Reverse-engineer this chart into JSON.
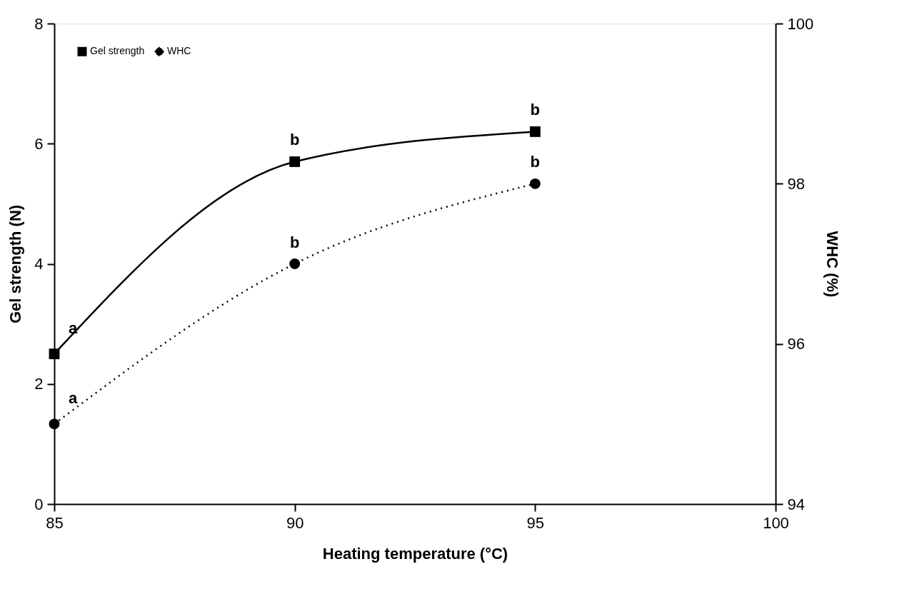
{
  "chart_data": {
    "type": "line",
    "xlabel": "Heating temperature (°C)",
    "ylabel": "Gel strength (N)",
    "y2label": "WHC (%)",
    "x": [
      85,
      90,
      95
    ],
    "series": [
      {
        "name": "Gel strength",
        "color": "#000000",
        "values": [
          2.5,
          5.7,
          6.2
        ],
        "marker": "square",
        "line_style": "solid"
      },
      {
        "name": "WHC",
        "color": "#000000",
        "values": [
          95.0,
          97.0,
          98.0
        ],
        "marker": "circle",
        "line_style": "dotted",
        "axis": "y2"
      }
    ],
    "xlim": [
      85,
      100
    ],
    "xticks": [
      85,
      90,
      95,
      100
    ],
    "ylim": [
      0,
      8
    ],
    "yticks": [
      0,
      2,
      4,
      6,
      8
    ],
    "y2lim": [
      94,
      100
    ],
    "y2ticks": [
      94,
      96,
      98,
      100
    ],
    "annotations": [
      "a",
      "a",
      "b",
      "b",
      "b",
      "b"
    ],
    "grid": false,
    "legend": "top left"
  }
}
